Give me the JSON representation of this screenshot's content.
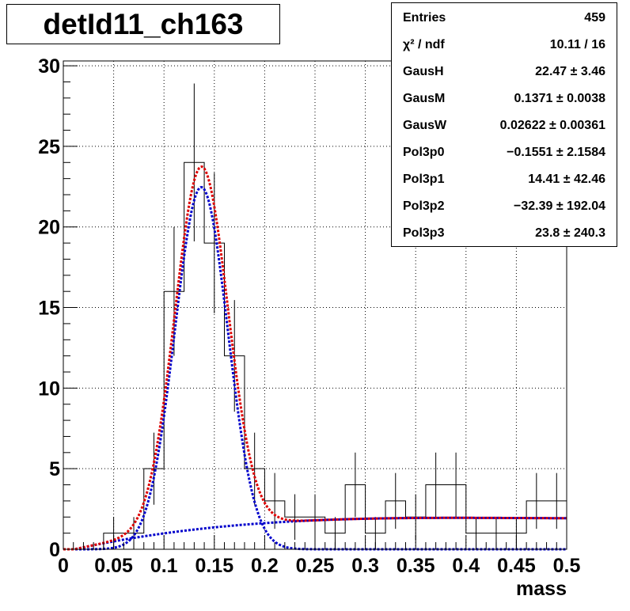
{
  "title": "detId11_ch163",
  "stats": [
    {
      "label": "Entries",
      "value": "459"
    },
    {
      "label": "χ² / ndf",
      "value": "10.11 / 16"
    },
    {
      "label": "GausH",
      "value": "22.47 ± 3.46"
    },
    {
      "label": "GausM",
      "value": "0.1371 ± 0.0038"
    },
    {
      "label": "GausW",
      "value": "0.02622 ± 0.00361"
    },
    {
      "label": "Pol3p0",
      "value": "−0.1551 ± 2.1584"
    },
    {
      "label": "Pol3p1",
      "value": "14.41 ± 42.46"
    },
    {
      "label": "Pol3p2",
      "value": "−32.39 ± 192.04"
    },
    {
      "label": "Pol3p3",
      "value": "23.8 ± 240.3"
    }
  ],
  "chart_data": {
    "type": "histogram",
    "title": "detId11_ch163",
    "xlabel": "mass",
    "ylabel": "",
    "xlim": [
      0,
      0.5
    ],
    "ylim": [
      0,
      30.3
    ],
    "grid": true,
    "bin_width": 0.02,
    "bin_low_edges": [
      0.0,
      0.02,
      0.04,
      0.06,
      0.08,
      0.1,
      0.12,
      0.14,
      0.16,
      0.18,
      0.2,
      0.22,
      0.24,
      0.26,
      0.28,
      0.3,
      0.32,
      0.34,
      0.36,
      0.38,
      0.4,
      0.42,
      0.44,
      0.46,
      0.48
    ],
    "counts": [
      0,
      0,
      1,
      1,
      5,
      16,
      24,
      19,
      12,
      5,
      3,
      2,
      2,
      1,
      4,
      1,
      3,
      2,
      4,
      4,
      1,
      1,
      1,
      3,
      3
    ],
    "x_ticks": [
      "0",
      "0.05",
      "0.1",
      "0.15",
      "0.2",
      "0.25",
      "0.3",
      "0.35",
      "0.4",
      "0.45",
      "0.5"
    ],
    "y_ticks": [
      "0",
      "5",
      "10",
      "15",
      "20",
      "25",
      "30"
    ],
    "fit": {
      "gaus_h": 22.47,
      "gaus_m": 0.1371,
      "gaus_w": 0.02622,
      "pol3": [
        -0.1551,
        14.41,
        -32.39,
        23.8
      ]
    },
    "series_colors": {
      "histogram": "#000000",
      "total_fit": "#dd0000",
      "gaussian_component": "#0000cc"
    }
  }
}
